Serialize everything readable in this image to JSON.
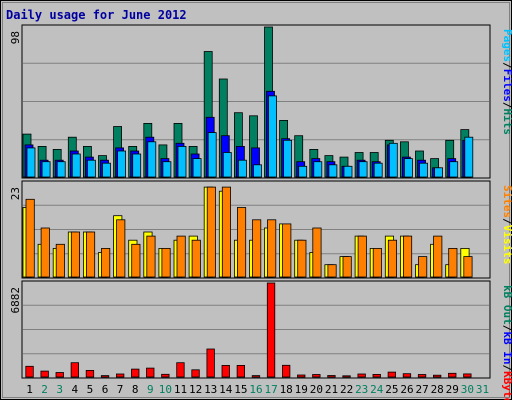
{
  "chart_data": {
    "type": "bar",
    "title": "Daily usage for June 2012",
    "categories": [
      "1",
      "2",
      "3",
      "4",
      "5",
      "6",
      "7",
      "8",
      "9",
      "10",
      "11",
      "12",
      "13",
      "14",
      "15",
      "16",
      "17",
      "18",
      "19",
      "20",
      "21",
      "22",
      "23",
      "24",
      "25",
      "26",
      "27",
      "28",
      "29",
      "30",
      "31"
    ],
    "weekend_days": [
      "2",
      "3",
      "9",
      "10",
      "16",
      "17",
      "23",
      "24",
      "30",
      "31"
    ],
    "colors": {
      "background": "#c0c0c0",
      "title": "#0000a0",
      "hits": "#008060",
      "files": "#0000ff",
      "pages": "#00c0ff",
      "visits": "#ffff00",
      "sites": "#ff8000",
      "kbytes": "#ff0000",
      "kbin": "#0000ff",
      "kbout": "#008060",
      "weekday_label": "#000000",
      "weekend_label": "#008060"
    },
    "panels": [
      {
        "id": "top",
        "max_label": "98",
        "ymax": 98,
        "legend": [
          {
            "text": "Hits",
            "color": "#008060"
          },
          {
            "text": "/",
            "color": "#000000"
          },
          {
            "text": "Files",
            "color": "#0000ff"
          },
          {
            "text": "/",
            "color": "#000000"
          },
          {
            "text": "Pages",
            "color": "#00c0ff"
          }
        ],
        "series": [
          {
            "key": "hits",
            "values": [
              28,
              20,
              18,
              26,
              20,
              14,
              33,
              20,
              35,
              21,
              35,
              20,
              82,
              64,
              42,
              40,
              98,
              37,
              27,
              18,
              14,
              13,
              16,
              16,
              24,
              23,
              17,
              12,
              24,
              31,
              0
            ]
          },
          {
            "key": "files",
            "values": [
              21,
              11,
              11,
              17,
              13,
              11,
              19,
              17,
              26,
              12,
              22,
              15,
              39,
              27,
              20,
              19,
              56,
              25,
              10,
              12,
              10,
              7,
              11,
              10,
              21,
              13,
              11,
              6,
              12,
              24,
              0
            ]
          },
          {
            "key": "pages",
            "values": [
              19,
              10,
              10,
              15,
              11,
              9,
              17,
              15,
              23,
              10,
              20,
              12,
              29,
              16,
              11,
              8,
              53,
              24,
              7,
              10,
              8,
              7,
              10,
              9,
              22,
              12,
              9,
              6,
              10,
              26,
              0
            ]
          }
        ]
      },
      {
        "id": "middle",
        "max_label": "23",
        "ymax": 23,
        "legend": [
          {
            "text": "Visits",
            "color": "#ffff00"
          },
          {
            "text": "/",
            "color": "#000000"
          },
          {
            "text": "Sites",
            "color": "#ff8000"
          }
        ],
        "series": [
          {
            "key": "visits",
            "values": [
              17,
              8,
              7,
              11,
              11,
              6,
              15,
              9,
              11,
              7,
              9,
              10,
              22,
              21,
              9,
              9,
              12,
              13,
              9,
              6,
              3,
              5,
              10,
              7,
              10,
              10,
              3,
              8,
              3,
              7,
              0
            ]
          },
          {
            "key": "sites",
            "values": [
              19,
              12,
              8,
              11,
              11,
              7,
              14,
              8,
              10,
              7,
              10,
              9,
              22,
              22,
              17,
              14,
              14,
              13,
              9,
              12,
              3,
              5,
              10,
              7,
              9,
              10,
              5,
              10,
              7,
              5,
              0
            ]
          }
        ]
      },
      {
        "id": "bottom",
        "max_label": "6882",
        "ymax": 6882,
        "legend": [
          {
            "text": "KBytes",
            "color": "#ff0000"
          },
          {
            "text": "/",
            "color": "#000000"
          },
          {
            "text": "kB In",
            "color": "#0000ff"
          },
          {
            "text": "/",
            "color": "#000000"
          },
          {
            "text": "kB Out",
            "color": "#008060"
          }
        ],
        "series": [
          {
            "key": "kbytes",
            "values": [
              780,
              430,
              330,
              1050,
              480,
              100,
              220,
              580,
              650,
              200,
              1050,
              530,
              2050,
              850,
              850,
              100,
              6882,
              860,
              150,
              180,
              110,
              90,
              220,
              190,
              360,
              240,
              180,
              130,
              270,
              230,
              0
            ]
          }
        ]
      }
    ]
  }
}
